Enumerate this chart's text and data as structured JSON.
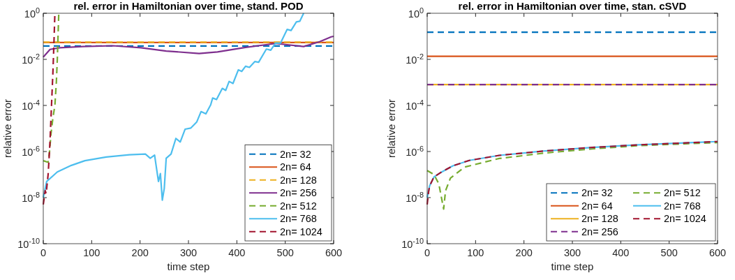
{
  "chart_data": [
    {
      "type": "line",
      "title": "rel. error in Hamiltonian over time, stand. POD",
      "xlabel": "time step",
      "ylabel": "relative error",
      "log": "y",
      "grid": false,
      "legend": "bottom right",
      "marker": "none",
      "xlim": [
        0,
        600
      ],
      "xticks": [
        0,
        100,
        200,
        300,
        400,
        500,
        600
      ],
      "ylim": [
        1e-10,
        1
      ],
      "yticks": [
        {
          "value": 1e-10,
          "label": "10$^{-10}$"
        },
        {
          "value": 1e-08,
          "label": "10$^{-8}$"
        },
        {
          "value": 1e-06,
          "label": "10$^{-6}$"
        },
        {
          "value": 0.0001,
          "label": "10$^{-4}$"
        },
        {
          "value": 0.01,
          "label": "10$^{-2}$"
        },
        {
          "value": 1,
          "label": "10$^{0}$"
        }
      ],
      "series": [
        {
          "name": "2n= 32",
          "color": "#0072bd",
          "line_style": "dashed",
          "x": [
            0,
            600
          ],
          "values": [
            0.038,
            0.038
          ]
        },
        {
          "name": "2n= 64",
          "color": "#d95319",
          "line_style": "solid",
          "x": [
            0,
            600
          ],
          "values": [
            0.054,
            0.054
          ]
        },
        {
          "name": "2n= 128",
          "color": "#edb120",
          "line_style": "dashed",
          "x": [
            0,
            600
          ],
          "values": [
            0.056,
            0.056
          ]
        },
        {
          "name": "2n= 256",
          "color": "#7e2f8e",
          "line_style": "solid",
          "x": [
            0,
            14,
            34,
            82,
            144,
            202,
            254,
            322,
            360,
            418,
            480,
            538,
            571,
            595,
            600
          ],
          "values": [
            0.0126,
            0.027,
            0.032,
            0.036,
            0.039,
            0.032,
            0.023,
            0.018,
            0.021,
            0.033,
            0.049,
            0.036,
            0.058,
            0.095,
            0.1
          ]
        },
        {
          "name": "2n= 512",
          "color": "#77ac30",
          "line_style": "dashed",
          "x": [
            0,
            8,
            10,
            13,
            16,
            20,
            24,
            27,
            29,
            32
          ],
          "values": [
            4e-07,
            3.5e-07,
            3.5e-07,
            1e-06,
            6e-06,
            3e-05,
            0.0001,
            0.001,
            0.01,
            1
          ]
        },
        {
          "name": "2n= 768",
          "color": "#4dbeee",
          "line_style": "solid",
          "x": [
            0,
            7,
            29,
            58,
            86,
            130,
            178,
            211,
            221,
            230,
            238,
            242,
            246,
            250,
            254,
            264,
            274,
            283,
            293,
            305,
            317,
            326,
            336,
            346,
            350,
            358,
            370,
            377,
            384,
            392,
            403,
            410,
            418,
            426,
            437,
            445,
            461,
            470,
            480,
            490,
            504,
            512,
            523,
            530,
            538
          ],
          "values": [
            1e-08,
            5e-08,
            1.3e-07,
            2.5e-07,
            4e-07,
            5.8e-07,
            7.2e-07,
            7.8e-07,
            5.1e-07,
            7e-07,
            5e-08,
            1.1e-07,
            7.8e-09,
            2.5e-08,
            5.1e-07,
            7.8e-07,
            3.7e-06,
            2.6e-06,
            9.3e-06,
            1.05e-05,
            1.9e-05,
            5.4e-05,
            4.3e-05,
            0.000107,
            0.00021,
            0.00018,
            0.00055,
            0.00045,
            0.0011,
            0.0009,
            0.0035,
            0.003,
            0.005,
            0.0045,
            0.008,
            0.0075,
            0.028,
            0.025,
            0.051,
            0.05,
            0.2,
            0.18,
            0.42,
            0.45,
            1
          ]
        },
        {
          "name": "2n= 1024",
          "color": "#a2142f",
          "line_style": "dashed",
          "x": [
            0,
            4,
            6,
            8,
            10,
            12,
            14,
            17,
            20,
            22,
            24
          ],
          "values": [
            5e-09,
            2e-08,
            1.5e-08,
            4e-08,
            1e-07,
            5e-07,
            3e-06,
            0.0001,
            0.003,
            0.05,
            1
          ]
        }
      ]
    },
    {
      "type": "line",
      "title": "rel. error in Hamiltonian over time, stan. cSVD",
      "xlabel": "time step",
      "ylabel": "relative error",
      "log": "y",
      "grid": false,
      "legend": "bottom right",
      "marker": "none",
      "xlim": [
        0,
        600
      ],
      "xticks": [
        0,
        100,
        200,
        300,
        400,
        500,
        600
      ],
      "ylim": [
        1e-10,
        1
      ],
      "yticks": [
        {
          "value": 1e-10,
          "label": "10$^{-10}$"
        },
        {
          "value": 1e-08,
          "label": "10$^{-8}$"
        },
        {
          "value": 1e-06,
          "label": "10$^{-6}$"
        },
        {
          "value": 0.0001,
          "label": "10$^{-4}$"
        },
        {
          "value": 0.01,
          "label": "10$^{-2}$"
        },
        {
          "value": 1,
          "label": "10$^{0}$"
        }
      ],
      "series": [
        {
          "name": "2n= 32",
          "color": "#0072bd",
          "line_style": "dashed",
          "x": [
            0,
            600
          ],
          "values": [
            0.15,
            0.15
          ]
        },
        {
          "name": "2n= 64",
          "color": "#d95319",
          "line_style": "solid",
          "x": [
            0,
            600
          ],
          "values": [
            0.0135,
            0.0135
          ]
        },
        {
          "name": "2n= 128",
          "color": "#edb120",
          "line_style": "solid",
          "x": [
            0,
            600
          ],
          "values": [
            0.0008,
            0.0008
          ]
        },
        {
          "name": "2n= 256",
          "color": "#7e2f8e",
          "line_style": "dashed",
          "x": [
            0,
            600
          ],
          "values": [
            0.0008,
            0.0008
          ]
        },
        {
          "name": "2n= 512",
          "color": "#77ac30",
          "line_style": "dashed",
          "x": [
            0,
            14,
            24,
            34,
            38,
            48,
            77,
            149,
            245,
            341,
            437,
            600
          ],
          "values": [
            1.5e-07,
            1e-07,
            4e-08,
            3.2e-09,
            2e-08,
            7e-08,
            2.1e-07,
            5e-07,
            8.7e-07,
            1.3e-06,
            1.8e-06,
            2.45e-06
          ]
        },
        {
          "name": "2n= 768",
          "color": "#4dbeee",
          "line_style": "solid",
          "x": [
            0,
            5,
            14,
            29,
            53,
            87,
            149,
            245,
            341,
            437,
            600
          ],
          "values": [
            1e-08,
            3.2e-08,
            7.9e-08,
            1.26e-07,
            2.4e-07,
            4.1e-07,
            6.8e-07,
            1.07e-06,
            1.5e-06,
            1.95e-06,
            2.7e-06
          ]
        },
        {
          "name": "2n= 1024",
          "color": "#a2142f",
          "line_style": "dashed",
          "x": [
            0,
            3,
            5,
            14,
            29,
            53,
            87,
            149,
            245,
            341,
            437,
            600
          ],
          "values": [
            5e-09,
            1.8e-08,
            3.2e-08,
            7.9e-08,
            1.26e-07,
            2.4e-07,
            4.1e-07,
            6.8e-07,
            1.07e-06,
            1.5e-06,
            1.95e-06,
            2.7e-06
          ]
        }
      ]
    }
  ]
}
